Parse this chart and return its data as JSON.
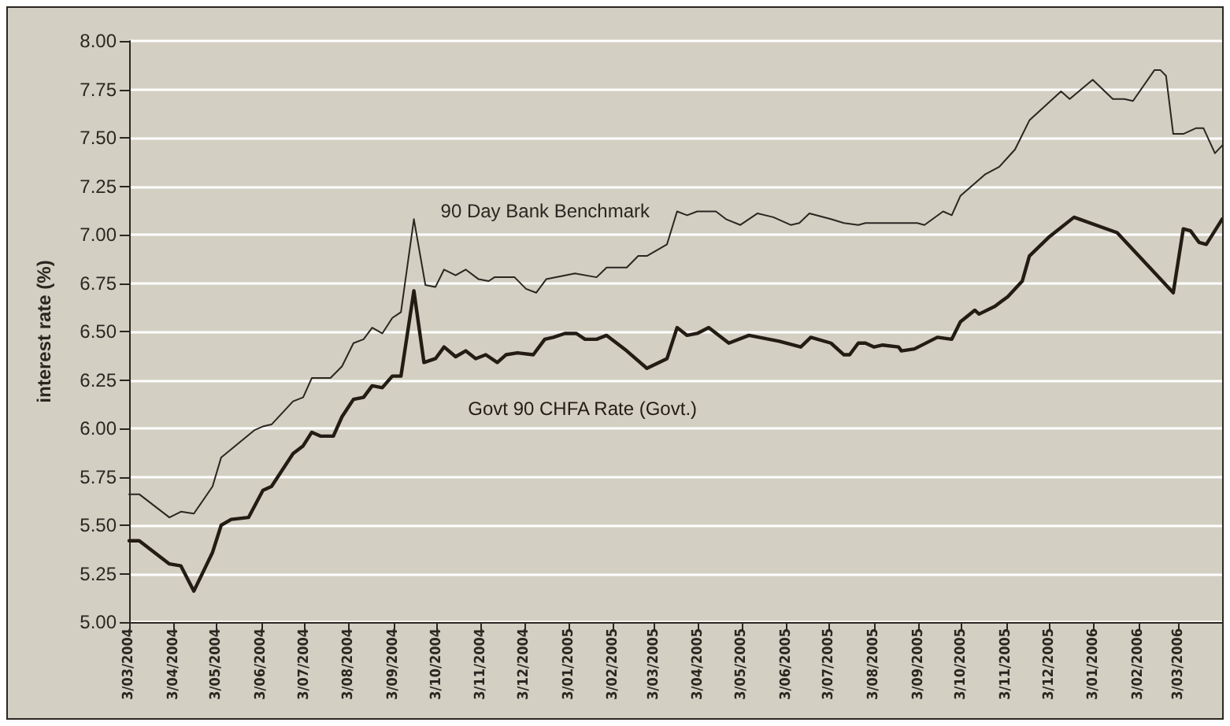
{
  "chart_data": {
    "type": "line",
    "ylabel": "interest rate (%)",
    "xlim": [
      "2004-03-03",
      "2006-04-02"
    ],
    "xticks": [
      {
        "value": "2004-03-03",
        "label": "3/03/2004"
      },
      {
        "value": "2004-04-03",
        "label": "3/04/2004"
      },
      {
        "value": "2004-05-03",
        "label": "3/05/2004"
      },
      {
        "value": "2004-06-03",
        "label": "3/06/2004"
      },
      {
        "value": "2004-07-03",
        "label": "3/07/2004"
      },
      {
        "value": "2004-08-03",
        "label": "3/08/2004"
      },
      {
        "value": "2004-09-03",
        "label": "3/09/2004"
      },
      {
        "value": "2004-10-03",
        "label": "3/10/2004"
      },
      {
        "value": "2004-11-03",
        "label": "3/11/2004"
      },
      {
        "value": "2004-12-03",
        "label": "3/12/2004"
      },
      {
        "value": "2005-01-03",
        "label": "3/01/2005"
      },
      {
        "value": "2005-02-03",
        "label": "3/02/2005"
      },
      {
        "value": "2005-03-03",
        "label": "3/03/2005"
      },
      {
        "value": "2005-04-03",
        "label": "3/04/2005"
      },
      {
        "value": "2005-05-03",
        "label": "3/05/2005"
      },
      {
        "value": "2005-06-03",
        "label": "3/06/2005"
      },
      {
        "value": "2005-07-03",
        "label": "3/07/2005"
      },
      {
        "value": "2005-08-03",
        "label": "3/08/2005"
      },
      {
        "value": "2005-09-03",
        "label": "3/09/2005"
      },
      {
        "value": "2005-10-03",
        "label": "3/10/2005"
      },
      {
        "value": "2005-11-03",
        "label": "3/11/2005"
      },
      {
        "value": "2005-12-03",
        "label": "3/12/2005"
      },
      {
        "value": "2006-01-03",
        "label": "3/01/2006"
      },
      {
        "value": "2006-02-03",
        "label": "3/02/2006"
      },
      {
        "value": "2006-03-03",
        "label": "3/03/2006"
      }
    ],
    "ylim": [
      5,
      8
    ],
    "yticks": [
      {
        "value": 5,
        "label": "5.00"
      },
      {
        "value": 5.25,
        "label": "5.25"
      },
      {
        "value": 5.5,
        "label": "5.50"
      },
      {
        "value": 5.75,
        "label": "5.75"
      },
      {
        "value": 6,
        "label": "6.00"
      },
      {
        "value": 6.25,
        "label": "6.25"
      },
      {
        "value": 6.5,
        "label": "6.50"
      },
      {
        "value": 6.75,
        "label": "6.75"
      },
      {
        "value": 7,
        "label": "7.00"
      },
      {
        "value": 7.25,
        "label": "7.25"
      },
      {
        "value": 7.5,
        "label": "7.50"
      },
      {
        "value": 7.75,
        "label": "7.75"
      },
      {
        "value": 8,
        "label": "8.00"
      }
    ],
    "grid": "y",
    "legend": false,
    "marker": "none",
    "line_style": "solid",
    "series": [
      {
        "name": "90 Day Bank Benchmark",
        "color": "#2b2620",
        "x": [
          "2004-03-03",
          "2004-03-10",
          "2004-03-31",
          "2004-04-08",
          "2004-04-17",
          "2004-04-30",
          "2004-05-06",
          "2004-05-29",
          "2004-06-04",
          "2004-06-10",
          "2004-06-25",
          "2004-07-02",
          "2004-07-08",
          "2004-07-21",
          "2004-07-29",
          "2004-08-06",
          "2004-08-13",
          "2004-08-19",
          "2004-08-26",
          "2004-09-02",
          "2004-09-08",
          "2004-09-17",
          "2004-09-25",
          "2004-10-02",
          "2004-10-08",
          "2004-10-16",
          "2004-10-23",
          "2004-11-01",
          "2004-11-08",
          "2004-11-12",
          "2004-11-26",
          "2004-12-04",
          "2004-12-11",
          "2004-12-18",
          "2005-01-07",
          "2005-01-22",
          "2005-01-29",
          "2005-02-12",
          "2005-02-20",
          "2005-02-26",
          "2005-03-12",
          "2005-03-19",
          "2005-03-26",
          "2005-04-02",
          "2005-04-15",
          "2005-04-22",
          "2005-05-02",
          "2005-05-14",
          "2005-05-25",
          "2005-06-06",
          "2005-06-12",
          "2005-06-19",
          "2005-07-04",
          "2005-07-13",
          "2005-07-23",
          "2005-07-28",
          "2005-09-02",
          "2005-09-07",
          "2005-09-20",
          "2005-09-26",
          "2005-10-02",
          "2005-10-19",
          "2005-10-29",
          "2005-11-09",
          "2005-11-19",
          "2005-12-11",
          "2005-12-17",
          "2006-01-02",
          "2006-01-16",
          "2006-01-24",
          "2006-01-30",
          "2006-02-14",
          "2006-02-18",
          "2006-02-22",
          "2006-02-27",
          "2006-03-06",
          "2006-03-15",
          "2006-03-20",
          "2006-03-28",
          "2006-04-02"
        ],
        "values": [
          5.66,
          5.66,
          5.54,
          5.57,
          5.56,
          5.7,
          5.85,
          5.99,
          6.01,
          6.02,
          6.14,
          6.16,
          6.26,
          6.26,
          6.32,
          6.44,
          6.46,
          6.52,
          6.49,
          6.57,
          6.6,
          7.08,
          6.74,
          6.73,
          6.82,
          6.79,
          6.82,
          6.77,
          6.76,
          6.78,
          6.78,
          6.72,
          6.7,
          6.77,
          6.8,
          6.78,
          6.83,
          6.83,
          6.89,
          6.89,
          6.95,
          7.12,
          7.1,
          7.12,
          7.12,
          7.08,
          7.05,
          7.11,
          7.09,
          7.05,
          7.06,
          7.11,
          7.08,
          7.06,
          7.05,
          7.06,
          7.06,
          7.05,
          7.12,
          7.1,
          7.2,
          7.31,
          7.35,
          7.44,
          7.59,
          7.74,
          7.7,
          7.8,
          7.7,
          7.7,
          7.69,
          7.85,
          7.85,
          7.82,
          7.52,
          7.52,
          7.55,
          7.55,
          7.42,
          7.46
        ]
      },
      {
        "name": "Govt 90 CHFA Rate (Govt.)",
        "color": "#231c14",
        "x": [
          "2004-03-03",
          "2004-03-10",
          "2004-03-31",
          "2004-04-08",
          "2004-04-17",
          "2004-04-30",
          "2004-05-06",
          "2004-05-13",
          "2004-05-25",
          "2004-06-04",
          "2004-06-10",
          "2004-06-25",
          "2004-07-02",
          "2004-07-08",
          "2004-07-14",
          "2004-07-23",
          "2004-07-29",
          "2004-08-06",
          "2004-08-13",
          "2004-08-19",
          "2004-08-26",
          "2004-09-02",
          "2004-09-08",
          "2004-09-17",
          "2004-09-24",
          "2004-10-02",
          "2004-10-08",
          "2004-10-16",
          "2004-10-23",
          "2004-10-30",
          "2004-11-06",
          "2004-11-14",
          "2004-11-20",
          "2004-11-28",
          "2004-12-09",
          "2004-12-17",
          "2004-12-23",
          "2004-12-31",
          "2005-01-08",
          "2005-01-14",
          "2005-01-22",
          "2005-01-29",
          "2005-02-12",
          "2005-02-26",
          "2005-03-12",
          "2005-03-19",
          "2005-03-26",
          "2005-04-02",
          "2005-04-10",
          "2005-04-24",
          "2005-05-08",
          "2005-05-29",
          "2005-06-13",
          "2005-06-20",
          "2005-07-04",
          "2005-07-13",
          "2005-07-17",
          "2005-07-23",
          "2005-07-28",
          "2005-08-03",
          "2005-08-09",
          "2005-08-20",
          "2005-08-22",
          "2005-08-31",
          "2005-09-16",
          "2005-09-26",
          "2005-10-02",
          "2005-10-12",
          "2005-10-15",
          "2005-10-26",
          "2005-11-04",
          "2005-11-14",
          "2005-11-19",
          "2005-12-03",
          "2005-12-20",
          "2006-01-19",
          "2006-02-27",
          "2006-03-06",
          "2006-03-11",
          "2006-03-17",
          "2006-03-22",
          "2006-04-02"
        ],
        "values": [
          5.42,
          5.42,
          5.3,
          5.29,
          5.16,
          5.36,
          5.5,
          5.53,
          5.54,
          5.68,
          5.7,
          5.87,
          5.91,
          5.98,
          5.96,
          5.96,
          6.06,
          6.15,
          6.16,
          6.22,
          6.21,
          6.27,
          6.27,
          6.71,
          6.34,
          6.36,
          6.42,
          6.37,
          6.4,
          6.36,
          6.38,
          6.34,
          6.38,
          6.39,
          6.38,
          6.46,
          6.47,
          6.49,
          6.49,
          6.46,
          6.46,
          6.48,
          6.4,
          6.31,
          6.36,
          6.52,
          6.48,
          6.49,
          6.52,
          6.44,
          6.48,
          6.45,
          6.42,
          6.47,
          6.44,
          6.38,
          6.38,
          6.44,
          6.44,
          6.42,
          6.43,
          6.42,
          6.4,
          6.41,
          6.47,
          6.46,
          6.55,
          6.61,
          6.59,
          6.63,
          6.68,
          6.76,
          6.89,
          6.99,
          7.09,
          7.01,
          6.7,
          7.03,
          7.02,
          6.96,
          6.95,
          7.08
        ]
      }
    ]
  }
}
